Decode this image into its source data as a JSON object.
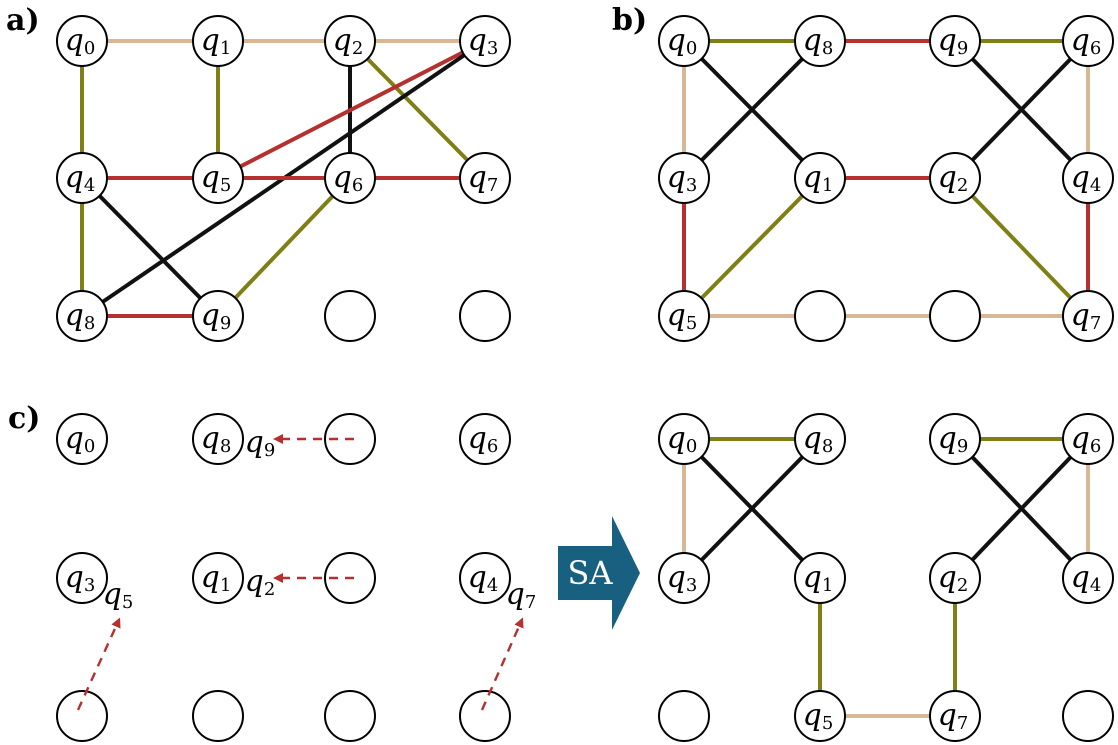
{
  "colors": {
    "black": "#111111",
    "red": "#b5302e",
    "olive": "#7f7f16",
    "tan": "#d8b894",
    "arrow_red": "#b5302e",
    "sa_fill": "#18607f"
  },
  "sa_label": "SA",
  "panels": [
    {
      "id": "a",
      "label": "a)",
      "nodes": [
        {
          "id": "n0",
          "name": "q",
          "sub": "0"
        },
        {
          "id": "n1",
          "name": "q",
          "sub": "1"
        },
        {
          "id": "n2",
          "name": "q",
          "sub": "2"
        },
        {
          "id": "n3",
          "name": "q",
          "sub": "3"
        },
        {
          "id": "n4",
          "name": "q",
          "sub": "4"
        },
        {
          "id": "n5",
          "name": "q",
          "sub": "5"
        },
        {
          "id": "n6",
          "name": "q",
          "sub": "6"
        },
        {
          "id": "n7",
          "name": "q",
          "sub": "7"
        },
        {
          "id": "n8",
          "name": "q",
          "sub": "8"
        },
        {
          "id": "n9",
          "name": "q",
          "sub": "9"
        },
        {
          "id": "e1",
          "name": "",
          "sub": ""
        },
        {
          "id": "e2",
          "name": "",
          "sub": ""
        }
      ],
      "edges": [
        {
          "from": "q0",
          "to": "q1",
          "color": "black"
        },
        {
          "from": "q1",
          "to": "q2",
          "color": "red"
        },
        {
          "from": "q0",
          "to": "q3",
          "color": "tan"
        },
        {
          "from": "q0",
          "to": "q8",
          "color": "olive"
        },
        {
          "from": "q1",
          "to": "q5",
          "color": "olive"
        },
        {
          "from": "q2",
          "to": "q6",
          "color": "black"
        },
        {
          "from": "q2",
          "to": "q7",
          "color": "olive"
        },
        {
          "from": "q3",
          "to": "q5",
          "color": "red"
        },
        {
          "from": "q3",
          "to": "q8",
          "color": "black"
        },
        {
          "from": "q4",
          "to": "q6",
          "color": "tan"
        },
        {
          "from": "q5",
          "to": "q7",
          "color": "tan"
        },
        {
          "from": "q4",
          "to": "q7",
          "color": "red"
        },
        {
          "from": "q4",
          "to": "q9",
          "color": "black"
        },
        {
          "from": "q6",
          "to": "q9",
          "color": "olive"
        },
        {
          "from": "q8",
          "to": "q9",
          "color": "red"
        }
      ]
    },
    {
      "id": "b",
      "label": "b)",
      "nodes": [
        {
          "id": "n0",
          "name": "q",
          "sub": "0"
        },
        {
          "id": "n1",
          "name": "q",
          "sub": "8"
        },
        {
          "id": "n2",
          "name": "q",
          "sub": "9"
        },
        {
          "id": "n3",
          "name": "q",
          "sub": "6"
        },
        {
          "id": "n4",
          "name": "q",
          "sub": "3"
        },
        {
          "id": "n5",
          "name": "q",
          "sub": "1"
        },
        {
          "id": "n6",
          "name": "q",
          "sub": "2"
        },
        {
          "id": "n7",
          "name": "q",
          "sub": "4"
        },
        {
          "id": "n8",
          "name": "q",
          "sub": "5"
        },
        {
          "id": "n9",
          "name": "",
          "sub": ""
        },
        {
          "id": "n10",
          "name": "",
          "sub": ""
        },
        {
          "id": "n11",
          "name": "q",
          "sub": "7"
        }
      ],
      "edges": [
        {
          "from": "q0",
          "to": "q8",
          "color": "olive"
        },
        {
          "from": "q8",
          "to": "q9",
          "color": "red"
        },
        {
          "from": "q9",
          "to": "q6",
          "color": "olive"
        },
        {
          "from": "q0",
          "to": "q3",
          "color": "tan"
        },
        {
          "from": "q0",
          "to": "q1",
          "color": "black"
        },
        {
          "from": "q8",
          "to": "q3",
          "color": "black"
        },
        {
          "from": "q9",
          "to": "q4",
          "color": "black"
        },
        {
          "from": "q6",
          "to": "q2",
          "color": "black"
        },
        {
          "from": "q6",
          "to": "q4",
          "color": "tan"
        },
        {
          "from": "q1",
          "to": "q2",
          "color": "red"
        },
        {
          "from": "q3",
          "to": "q5",
          "color": "red"
        },
        {
          "from": "q1",
          "to": "q5",
          "color": "olive"
        },
        {
          "from": "q2",
          "to": "q7",
          "color": "olive"
        },
        {
          "from": "q4",
          "to": "q7",
          "color": "red"
        },
        {
          "from": "q5",
          "to": "q7",
          "color": "tan"
        }
      ]
    },
    {
      "id": "c",
      "label": "c)",
      "nodes": [
        {
          "id": "n0",
          "name": "q",
          "sub": "0"
        },
        {
          "id": "n1",
          "name": "q",
          "sub": "8"
        },
        {
          "id": "n2",
          "name": "",
          "sub": ""
        },
        {
          "id": "n3",
          "name": "q",
          "sub": "6"
        },
        {
          "id": "n4",
          "name": "q",
          "sub": "3"
        },
        {
          "id": "n5",
          "name": "q",
          "sub": "1"
        },
        {
          "id": "n6",
          "name": "",
          "sub": ""
        },
        {
          "id": "n7",
          "name": "q",
          "sub": "4"
        },
        {
          "id": "n8",
          "name": "",
          "sub": ""
        },
        {
          "id": "n9",
          "name": "",
          "sub": ""
        },
        {
          "id": "n10",
          "name": "",
          "sub": ""
        },
        {
          "id": "n11",
          "name": "",
          "sub": ""
        }
      ],
      "moves": [
        {
          "qubit_name": "q",
          "qubit_sub": "9",
          "from": "row 1, col 3",
          "to": "beside q8"
        },
        {
          "qubit_name": "q",
          "qubit_sub": "2",
          "from": "row 2, col 3",
          "to": "beside q1"
        },
        {
          "qubit_name": "q",
          "qubit_sub": "5",
          "from": "row 3, col 1",
          "to": "beside q3"
        },
        {
          "qubit_name": "q",
          "qubit_sub": "7",
          "from": "row 3, col 4",
          "to": "beside q4"
        }
      ]
    },
    {
      "id": "d",
      "label": "",
      "nodes": [
        {
          "id": "n0",
          "name": "q",
          "sub": "0"
        },
        {
          "id": "n1",
          "name": "q",
          "sub": "8"
        },
        {
          "id": "n2",
          "name": "q",
          "sub": "9"
        },
        {
          "id": "n3",
          "name": "q",
          "sub": "6"
        },
        {
          "id": "n4",
          "name": "q",
          "sub": "3"
        },
        {
          "id": "n5",
          "name": "q",
          "sub": "1"
        },
        {
          "id": "n6",
          "name": "q",
          "sub": "2"
        },
        {
          "id": "n7",
          "name": "q",
          "sub": "4"
        },
        {
          "id": "n8",
          "name": "",
          "sub": ""
        },
        {
          "id": "n9",
          "name": "q",
          "sub": "5"
        },
        {
          "id": "n10",
          "name": "q",
          "sub": "7"
        },
        {
          "id": "n11",
          "name": "",
          "sub": ""
        }
      ],
      "edges": [
        {
          "from": "q0",
          "to": "q8",
          "color": "olive"
        },
        {
          "from": "q0",
          "to": "q3",
          "color": "tan"
        },
        {
          "from": "q0",
          "to": "q1",
          "color": "black"
        },
        {
          "from": "q8",
          "to": "q3",
          "color": "black"
        },
        {
          "from": "q9",
          "to": "q6",
          "color": "olive"
        },
        {
          "from": "q9",
          "to": "q4",
          "color": "black"
        },
        {
          "from": "q6",
          "to": "q2",
          "color": "black"
        },
        {
          "from": "q6",
          "to": "q4",
          "color": "tan"
        },
        {
          "from": "q1",
          "to": "q5",
          "color": "olive"
        },
        {
          "from": "q2",
          "to": "q7",
          "color": "olive"
        },
        {
          "from": "q5",
          "to": "q7",
          "color": "tan"
        }
      ]
    }
  ]
}
